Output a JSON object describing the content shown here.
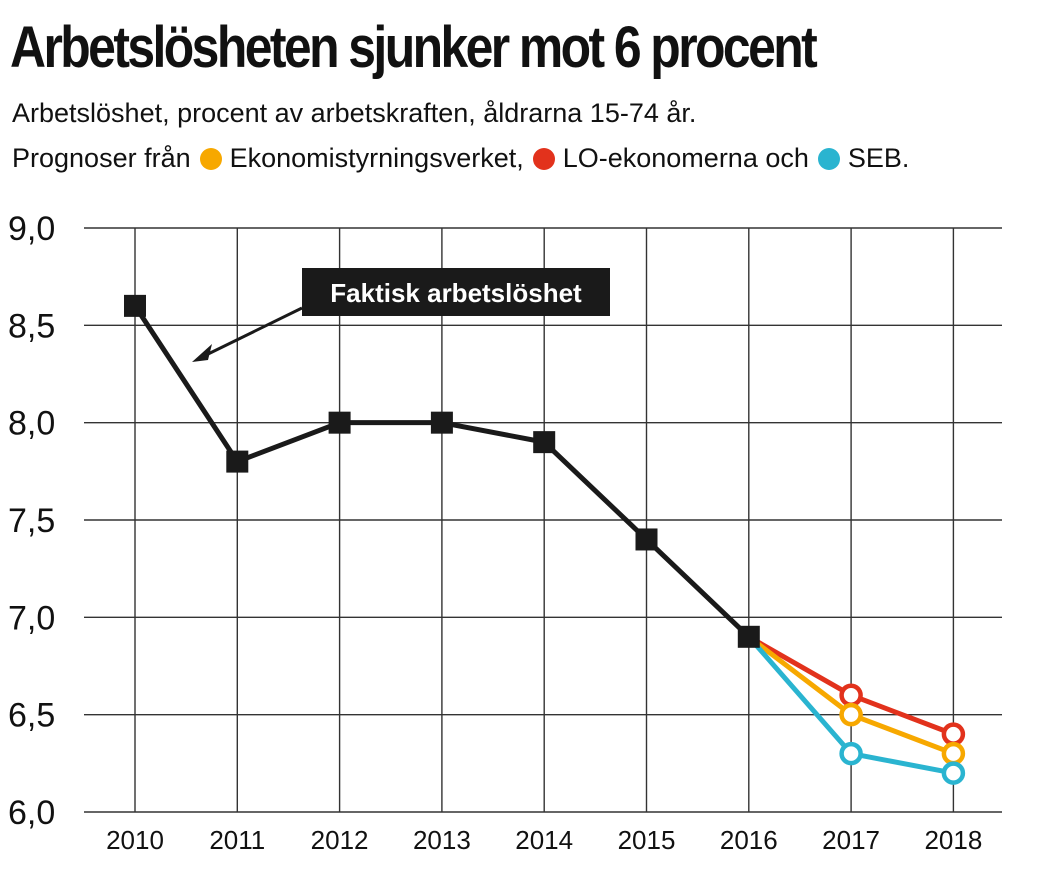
{
  "header": {
    "title": "Arbetslösheten sjunker mot 6 procent",
    "subtitle": "Arbetslöshet, procent av arbetskraften, åldrarna 15-74 år."
  },
  "legend": {
    "prefix": "Prognoser från",
    "items": [
      {
        "label": "Ekonomistyrningsverket,",
        "color": "#f7a800"
      },
      {
        "label": "LO-ekonomerna och",
        "color": "#e2321c"
      },
      {
        "label": "SEB.",
        "color": "#2ab4d0"
      }
    ]
  },
  "chart_data": {
    "type": "line",
    "title": "Arbetslösheten sjunker mot 6 procent",
    "ylabel": "",
    "xlabel": "",
    "categories": [
      "2010",
      "2011",
      "2012",
      "2013",
      "2014",
      "2015",
      "2016",
      "2017",
      "2018"
    ],
    "ylim": [
      6.0,
      9.0
    ],
    "yticks": [
      6.0,
      6.5,
      7.0,
      7.5,
      8.0,
      8.5,
      9.0
    ],
    "ytick_labels": [
      "6,0",
      "6,5",
      "7,0",
      "7,5",
      "8,0",
      "8,5",
      "9,0"
    ],
    "grid": true,
    "series": [
      {
        "name": "Faktisk arbetslöshet",
        "color": "#1a1a1a",
        "marker": "square",
        "x": [
          "2010",
          "2011",
          "2012",
          "2013",
          "2014",
          "2015",
          "2016"
        ],
        "values": [
          8.6,
          7.8,
          8.0,
          8.0,
          7.9,
          7.4,
          6.9
        ]
      },
      {
        "name": "Ekonomistyrningsverket",
        "color": "#f7a800",
        "marker": "circle",
        "x": [
          "2016",
          "2017",
          "2018"
        ],
        "values": [
          6.9,
          6.5,
          6.3
        ]
      },
      {
        "name": "LO-ekonomerna",
        "color": "#e2321c",
        "marker": "circle",
        "x": [
          "2016",
          "2017",
          "2018"
        ],
        "values": [
          6.9,
          6.6,
          6.4
        ]
      },
      {
        "name": "SEB",
        "color": "#2ab4d0",
        "marker": "circle",
        "x": [
          "2016",
          "2017",
          "2018"
        ],
        "values": [
          6.9,
          6.3,
          6.2
        ]
      }
    ],
    "annotation": {
      "text": "Faktisk arbetslöshet",
      "points_to": "2010"
    }
  }
}
